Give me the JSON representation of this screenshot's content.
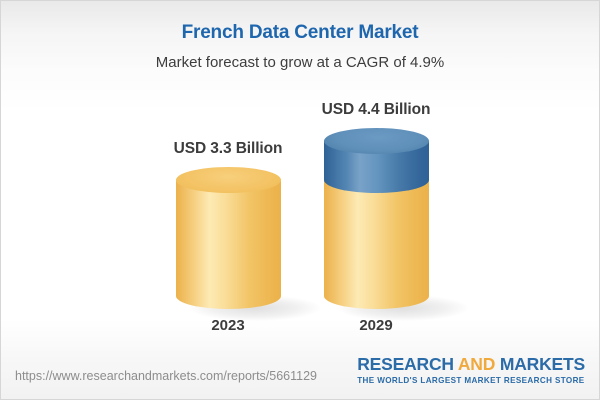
{
  "header": {
    "title": "French Data Center Market",
    "subtitle": "Market forecast to grow at a CAGR of 4.9%"
  },
  "chart_data": {
    "type": "bar",
    "title": "French Data Center Market",
    "subtitle": "Market forecast to grow at a CAGR of 4.9%",
    "categories": [
      "2023",
      "2029"
    ],
    "values": [
      3.3,
      4.4
    ],
    "value_labels": [
      "USD 3.3 Billion",
      "USD 4.4 Billion"
    ],
    "unit": "USD Billion",
    "cagr_percent": 4.9,
    "baseline_value": 3.3,
    "colors": {
      "base_segment_gold": "#f0bc5a",
      "growth_segment_blue": "#4379a9",
      "title_blue": "#1e66ad",
      "label_gray": "#3c3c3c"
    },
    "layout": {
      "bar_style": "3d-cylinder",
      "grid": false,
      "legend": false
    }
  },
  "footer": {
    "url": "https://www.researchandmarkets.com/reports/5661129",
    "logo": {
      "word1": "RESEARCH",
      "word2": "AND",
      "word3": "MARKETS",
      "tagline": "THE WORLD'S LARGEST MARKET RESEARCH STORE"
    }
  }
}
